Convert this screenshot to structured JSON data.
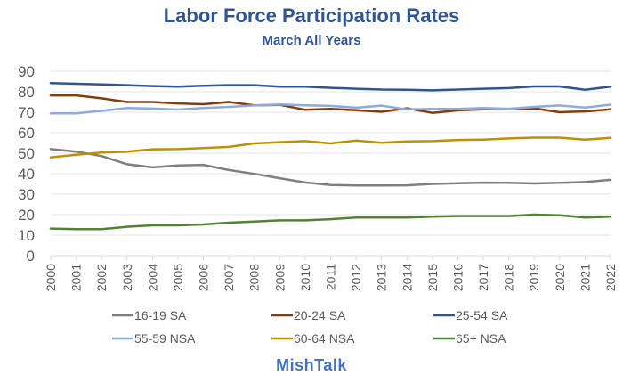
{
  "chart_data": {
    "type": "line",
    "title": "Labor Force Participation Rates",
    "subtitle": "March All Years",
    "xlabel": "",
    "ylabel": "",
    "ylim": [
      0,
      90
    ],
    "yticks": [
      0,
      10,
      20,
      30,
      40,
      50,
      60,
      70,
      80,
      90
    ],
    "grid": true,
    "legend_position": "bottom",
    "x": [
      "2000",
      "2001",
      "2002",
      "2003",
      "2004",
      "2005",
      "2006",
      "2007",
      "2008",
      "2009",
      "2010",
      "2011",
      "2012",
      "2013",
      "2014",
      "2015",
      "2016",
      "2017",
      "2018",
      "2019",
      "2020",
      "2021",
      "2022"
    ],
    "series": [
      {
        "name": "16-19 SA",
        "color": "#7f7f7f",
        "values": [
          52.0,
          50.8,
          48.6,
          44.6,
          43.1,
          44.0,
          44.3,
          41.8,
          39.9,
          37.8,
          35.7,
          34.5,
          34.2,
          34.2,
          34.3,
          35.0,
          35.3,
          35.6,
          35.5,
          35.2,
          35.5,
          35.9,
          37.0
        ]
      },
      {
        "name": "20-24 SA",
        "color": "#843c0c",
        "values": [
          78.2,
          78.2,
          76.8,
          75.0,
          75.0,
          74.3,
          73.9,
          75.0,
          73.4,
          73.6,
          71.2,
          71.6,
          71.0,
          70.2,
          71.9,
          69.7,
          70.9,
          71.4,
          71.6,
          71.9,
          70.0,
          70.4,
          71.4
        ]
      },
      {
        "name": "25-54 SA",
        "color": "#2f5597",
        "values": [
          84.2,
          83.9,
          83.6,
          83.2,
          82.8,
          82.5,
          82.9,
          83.2,
          83.2,
          82.5,
          82.5,
          81.9,
          81.5,
          81.1,
          81.0,
          80.7,
          81.1,
          81.5,
          81.8,
          82.6,
          82.6,
          81.0,
          82.5
        ]
      },
      {
        "name": "55-59 NSA",
        "color": "#8faadc",
        "values": [
          69.5,
          69.5,
          70.7,
          72.1,
          71.8,
          71.3,
          72.1,
          72.6,
          73.3,
          73.8,
          73.4,
          73.1,
          72.2,
          73.2,
          71.4,
          71.6,
          71.6,
          72.1,
          71.7,
          72.6,
          73.3,
          72.3,
          73.7
        ]
      },
      {
        "name": "60-64 NSA",
        "color": "#bf9000",
        "values": [
          48.0,
          49.2,
          50.3,
          50.8,
          51.9,
          52.0,
          52.5,
          53.1,
          54.8,
          55.4,
          55.9,
          54.8,
          56.2,
          55.1,
          55.8,
          55.9,
          56.5,
          56.6,
          57.2,
          57.6,
          57.6,
          56.6,
          57.5
        ]
      },
      {
        "name": "65+ NSA",
        "color": "#548235",
        "values": [
          13.2,
          12.9,
          12.9,
          14.1,
          14.8,
          14.8,
          15.2,
          16.1,
          16.6,
          17.2,
          17.2,
          17.8,
          18.6,
          18.6,
          18.6,
          19.0,
          19.3,
          19.3,
          19.3,
          20.0,
          19.7,
          18.6,
          19.0
        ]
      }
    ]
  },
  "footer": {
    "source": "MishTalk"
  }
}
